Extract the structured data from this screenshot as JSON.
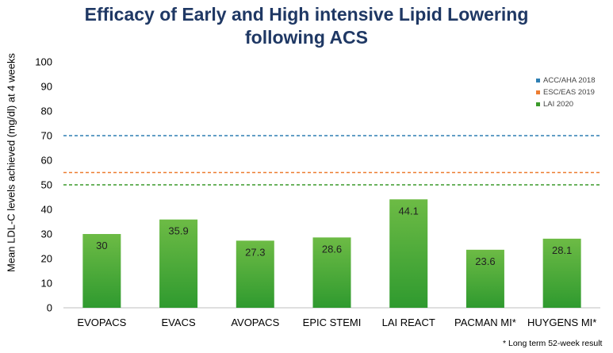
{
  "chart_data": {
    "type": "bar",
    "title_lines": [
      "Efficacy of Early and High intensive Lipid Lowering",
      "following ACS"
    ],
    "ylabel": "Mean LDL-C levels achieved (mg/dl) at 4 weeks",
    "xlabel": "",
    "ylim": [
      0,
      100
    ],
    "yticks": [
      0,
      10,
      20,
      30,
      40,
      50,
      60,
      70,
      80,
      90,
      100
    ],
    "grid": false,
    "categories": [
      "EVOPACS",
      "EVACS",
      "AVOPACS",
      "EPIC STEMI",
      "LAI REACT",
      "PACMAN MI*",
      "HUYGENS MI*"
    ],
    "values": [
      30,
      35.9,
      27.3,
      28.6,
      44.1,
      23.6,
      28.1
    ],
    "value_labels": [
      "30",
      "35.9",
      "27.3",
      "28.6",
      "44.1",
      "23.6",
      "28.1"
    ],
    "bar_color_top": "#6dbb45",
    "bar_color_bottom": "#2f9a2f",
    "reference_lines": [
      {
        "name": "ACC/AHA 2018",
        "value": 70,
        "color": "#2e7fb3"
      },
      {
        "name": "ESC/EAS 2019",
        "value": 55,
        "color": "#ed7d31"
      },
      {
        "name": "LAI 2020",
        "value": 50,
        "color": "#3a9a2a"
      }
    ],
    "legend_position": "top-right",
    "footnote": "* Long term 52-week result"
  }
}
